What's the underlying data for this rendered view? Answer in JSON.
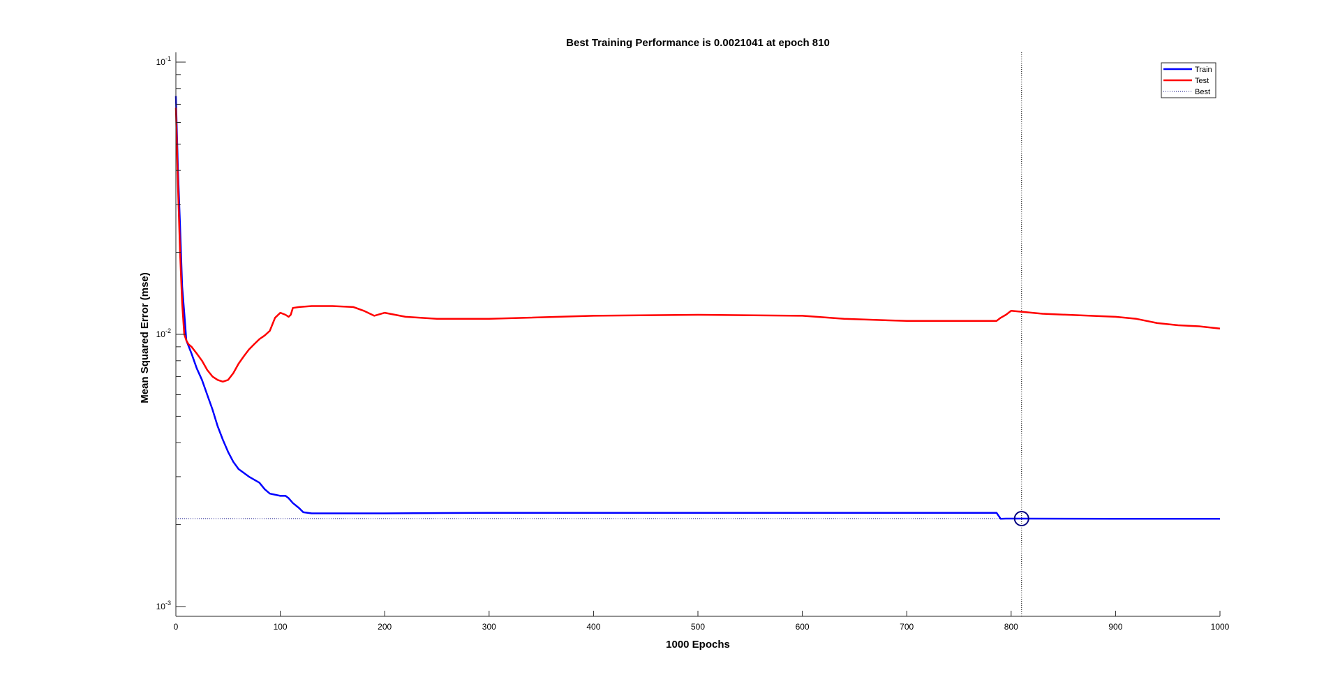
{
  "chart_data": {
    "type": "line",
    "title": "Best Training Performance is 0.0021041 at epoch 810",
    "xlabel": "1000 Epochs",
    "ylabel": "Mean Squared Error  (mse)",
    "xlim": [
      0,
      1000
    ],
    "ylim": [
      0.001,
      0.1
    ],
    "yscale": "log",
    "x_ticks": [
      0,
      100,
      200,
      300,
      400,
      500,
      600,
      700,
      800,
      900,
      1000
    ],
    "x_tick_labels": [
      "0",
      "100",
      "200",
      "300",
      "400",
      "500",
      "600",
      "700",
      "800",
      "900",
      "1000"
    ],
    "y_ticks": [
      0.001,
      0.01,
      0.1
    ],
    "y_tick_labels": [
      {
        "base": "10",
        "exp": "-3"
      },
      {
        "base": "10",
        "exp": "-2"
      },
      {
        "base": "10",
        "exp": "-1"
      }
    ],
    "grid": false,
    "legend_position": "top-right",
    "legend": [
      "Train",
      "Test",
      "Best"
    ],
    "series": [
      {
        "name": "Train",
        "color": "#0000ff",
        "x": [
          0,
          2,
          4,
          6,
          8,
          10,
          15,
          20,
          25,
          30,
          35,
          40,
          45,
          50,
          55,
          60,
          70,
          80,
          85,
          90,
          100,
          105,
          108,
          112,
          118,
          122,
          130,
          200,
          300,
          400,
          500,
          600,
          700,
          786,
          790,
          795,
          810,
          900,
          1000
        ],
        "y": [
          0.075,
          0.04,
          0.025,
          0.015,
          0.012,
          0.0095,
          0.0085,
          0.0075,
          0.0068,
          0.006,
          0.0053,
          0.0046,
          0.0041,
          0.0037,
          0.0034,
          0.0032,
          0.003,
          0.00285,
          0.0027,
          0.0026,
          0.00255,
          0.00255,
          0.0025,
          0.0024,
          0.0023,
          0.00222,
          0.0022,
          0.0022,
          0.00221,
          0.00221,
          0.00221,
          0.00221,
          0.00221,
          0.00221,
          0.0021,
          0.0021041,
          0.0021041,
          0.0021,
          0.0021
        ]
      },
      {
        "name": "Test",
        "color": "#ff0000",
        "x": [
          0,
          2,
          4,
          6,
          8,
          10,
          12,
          15,
          18,
          20,
          25,
          30,
          35,
          40,
          45,
          50,
          55,
          60,
          65,
          70,
          75,
          80,
          85,
          90,
          95,
          100,
          105,
          108,
          110,
          112,
          118,
          130,
          150,
          170,
          180,
          190,
          200,
          220,
          250,
          300,
          400,
          500,
          600,
          640,
          700,
          786,
          790,
          795,
          800,
          830,
          900,
          920,
          940,
          960,
          980,
          1000
        ],
        "y": [
          0.068,
          0.035,
          0.02,
          0.013,
          0.01,
          0.0095,
          0.0092,
          0.009,
          0.0087,
          0.0085,
          0.008,
          0.0074,
          0.007,
          0.0068,
          0.0067,
          0.0068,
          0.0072,
          0.0078,
          0.0083,
          0.0088,
          0.0092,
          0.0096,
          0.0099,
          0.0103,
          0.0115,
          0.012,
          0.0118,
          0.0116,
          0.0118,
          0.0125,
          0.0126,
          0.0127,
          0.0127,
          0.0126,
          0.0122,
          0.0117,
          0.012,
          0.0116,
          0.0114,
          0.0114,
          0.0117,
          0.0118,
          0.0117,
          0.0114,
          0.0112,
          0.0112,
          0.0115,
          0.0118,
          0.0122,
          0.0119,
          0.0116,
          0.0114,
          0.011,
          0.0108,
          0.0107,
          0.0105
        ]
      }
    ],
    "best": {
      "epoch": 810,
      "value": 0.0021041,
      "color": "#000080"
    }
  }
}
